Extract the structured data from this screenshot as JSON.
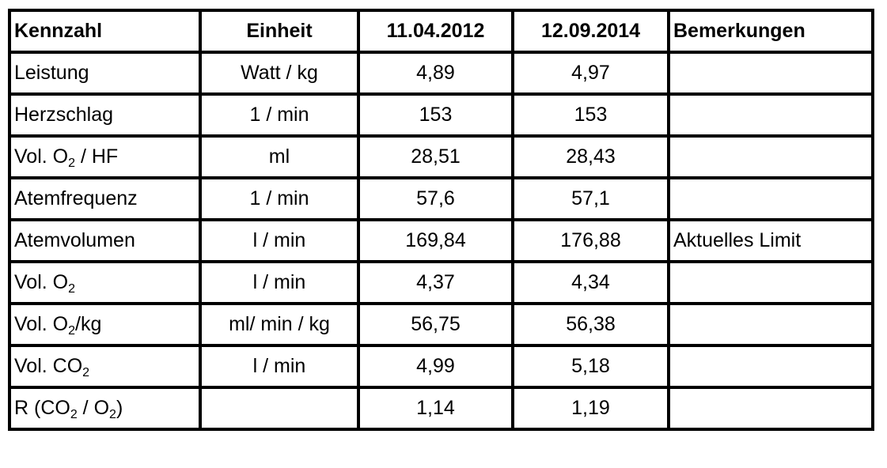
{
  "headers": [
    "Kennzahl",
    "Einheit",
    "11.04.2012",
    "12.09.2014",
    "Bemerkungen"
  ],
  "rows": [
    {
      "kennzahl": [
        {
          "t": "Leistung"
        }
      ],
      "einheit": "Watt / kg",
      "v2012": "4,89",
      "v2014": "4,97",
      "bemerkung": ""
    },
    {
      "kennzahl": [
        {
          "t": "Herzschlag"
        }
      ],
      "einheit": "1 / min",
      "v2012": "153",
      "v2014": "153",
      "bemerkung": ""
    },
    {
      "kennzahl": [
        {
          "t": "Vol. O"
        },
        {
          "t": "2",
          "sub": true
        },
        {
          "t": " / HF"
        }
      ],
      "einheit": "ml",
      "v2012": "28,51",
      "v2014": "28,43",
      "bemerkung": ""
    },
    {
      "kennzahl": [
        {
          "t": "Atemfrequenz"
        }
      ],
      "einheit": "1 / min",
      "v2012": "57,6",
      "v2014": "57,1",
      "bemerkung": ""
    },
    {
      "kennzahl": [
        {
          "t": "Atemvolumen"
        }
      ],
      "einheit": "l / min",
      "v2012": "169,84",
      "v2014": "176,88",
      "bemerkung": "Aktuelles Limit"
    },
    {
      "kennzahl": [
        {
          "t": "Vol. O"
        },
        {
          "t": "2",
          "sub": true
        }
      ],
      "einheit": "l / min",
      "v2012": "4,37",
      "v2014": "4,34",
      "bemerkung": ""
    },
    {
      "kennzahl": [
        {
          "t": "Vol. O"
        },
        {
          "t": "2",
          "sub": true
        },
        {
          "t": "/kg"
        }
      ],
      "einheit": "ml/ min / kg",
      "v2012": "56,75",
      "v2014": "56,38",
      "bemerkung": ""
    },
    {
      "kennzahl": [
        {
          "t": "Vol. CO"
        },
        {
          "t": "2",
          "sub": true
        }
      ],
      "einheit": "l / min",
      "v2012": "4,99",
      "v2014": "5,18",
      "bemerkung": ""
    },
    {
      "kennzahl": [
        {
          "t": "R (CO"
        },
        {
          "t": "2",
          "sub": true
        },
        {
          "t": " / O"
        },
        {
          "t": "2",
          "sub": true
        },
        {
          "t": ")"
        }
      ],
      "einheit": "",
      "v2012": "1,14",
      "v2014": "1,19",
      "bemerkung": ""
    }
  ]
}
